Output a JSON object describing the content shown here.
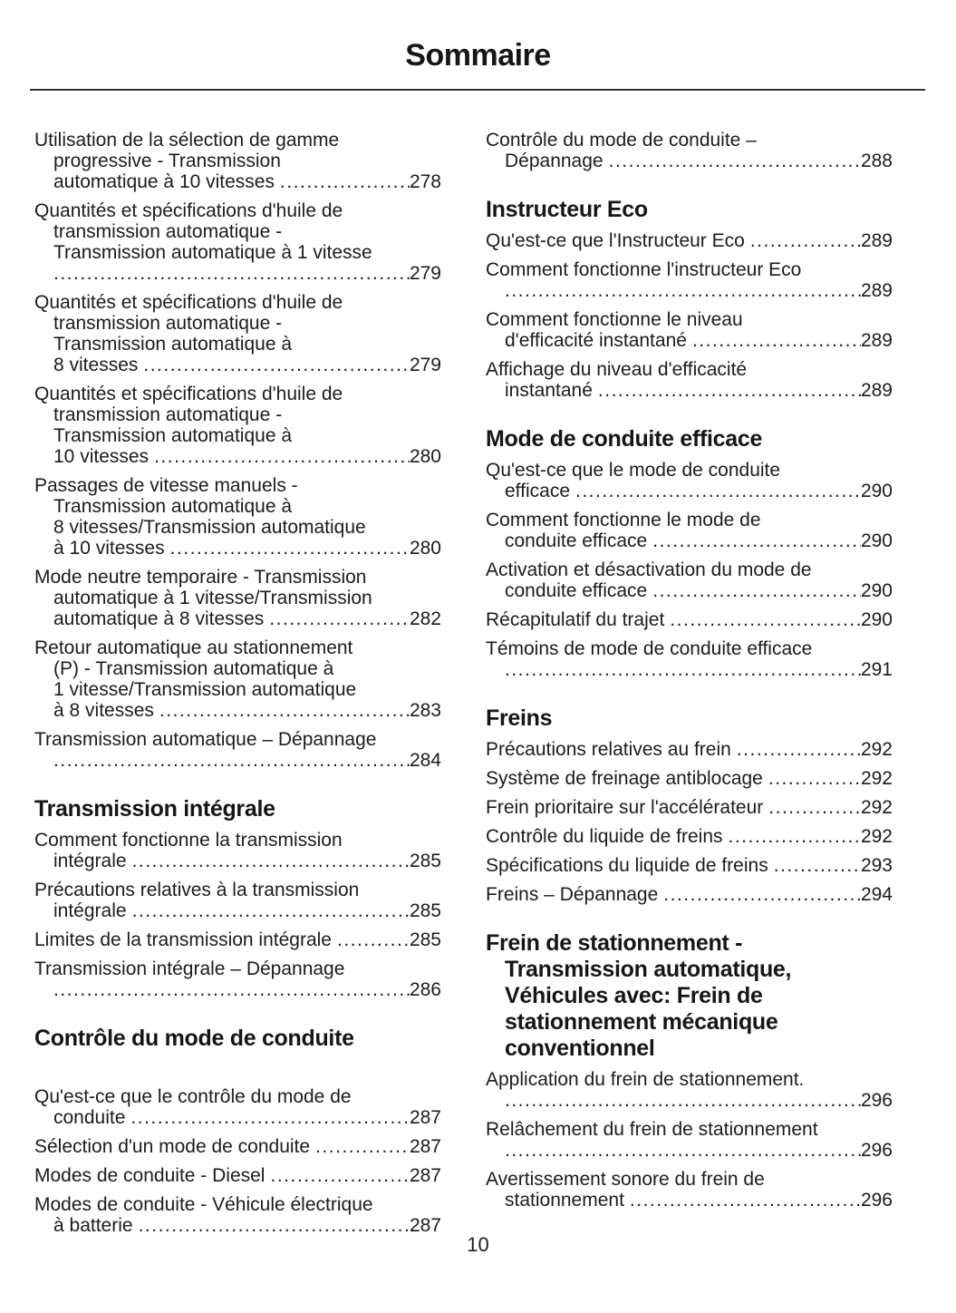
{
  "page": {
    "title": "Sommaire",
    "footer_page_number": "10"
  },
  "colors": {
    "background": "#ffffff",
    "text": "#1c1c1c",
    "divider": "#333333"
  },
  "toc": {
    "columns": [
      {
        "blocks": [
          {
            "type": "entry",
            "page": "278",
            "lines": [
              "Utilisation de la sélection de gamme",
              "progressive - Transmission",
              "automatique à 10 vitesses"
            ]
          },
          {
            "type": "entry",
            "page": "279",
            "lines": [
              "Quantités et spécifications d'huile de",
              "transmission automatique -",
              "Transmission automatique à 1 vitesse",
              ""
            ]
          },
          {
            "type": "entry",
            "page": "279",
            "lines": [
              "Quantités et spécifications d'huile de",
              "transmission automatique -",
              "Transmission automatique à",
              "8 vitesses"
            ]
          },
          {
            "type": "entry",
            "page": "280",
            "lines": [
              "Quantités et spécifications d'huile de",
              "transmission automatique -",
              "Transmission automatique à",
              "10 vitesses"
            ]
          },
          {
            "type": "entry",
            "page": "280",
            "lines": [
              "Passages de vitesse manuels -",
              "Transmission automatique à",
              "8 vitesses/Transmission automatique",
              "à 10 vitesses"
            ]
          },
          {
            "type": "entry",
            "page": "282",
            "lines": [
              "Mode neutre temporaire - Transmission",
              "automatique à 1 vitesse/Transmission",
              "automatique à 8 vitesses"
            ]
          },
          {
            "type": "entry",
            "page": "283",
            "lines": [
              "Retour automatique au stationnement",
              "(P) - Transmission automatique à",
              "1 vitesse/Transmission automatique",
              "à 8 vitesses"
            ]
          },
          {
            "type": "entry",
            "page": "284",
            "lines": [
              "Transmission automatique – Dépannage",
              ""
            ]
          },
          {
            "type": "heading",
            "lines": [
              "Transmission intégrale"
            ]
          },
          {
            "type": "entry",
            "page": "285",
            "lines": [
              "Comment fonctionne la transmission",
              "intégrale"
            ]
          },
          {
            "type": "entry",
            "page": "285",
            "lines": [
              "Précautions relatives à la transmission",
              "intégrale"
            ]
          },
          {
            "type": "entry",
            "page": "285",
            "lines": [
              "Limites de la transmission intégrale"
            ]
          },
          {
            "type": "entry",
            "page": "286",
            "lines": [
              "Transmission intégrale – Dépannage",
              ""
            ]
          },
          {
            "type": "heading",
            "lines": [
              "Contrôle du mode de conduite"
            ]
          },
          {
            "type": "spacer"
          },
          {
            "type": "entry",
            "page": "287",
            "lines": [
              "Qu'est-ce que le contrôle du mode de",
              "conduite"
            ]
          },
          {
            "type": "entry",
            "page": "287",
            "lines": [
              "Sélection d'un mode de conduite"
            ]
          },
          {
            "type": "entry",
            "page": "287",
            "lines": [
              "Modes de conduite - Diesel"
            ]
          },
          {
            "type": "entry",
            "page": "287",
            "lines": [
              "Modes de conduite - Véhicule électrique",
              "à batterie"
            ]
          }
        ]
      },
      {
        "blocks": [
          {
            "type": "entry",
            "page": "288",
            "lines": [
              "Contrôle du mode de conduite –",
              "Dépannage"
            ]
          },
          {
            "type": "heading",
            "lines": [
              "Instructeur Eco"
            ]
          },
          {
            "type": "entry",
            "page": "289",
            "lines": [
              "Qu'est-ce que l'Instructeur Eco"
            ]
          },
          {
            "type": "entry",
            "page": "289",
            "lines": [
              "Comment fonctionne l'instructeur Eco",
              ""
            ]
          },
          {
            "type": "entry",
            "page": "289",
            "lines": [
              "Comment fonctionne le niveau",
              "d'efficacité instantané"
            ]
          },
          {
            "type": "entry",
            "page": "289",
            "lines": [
              "Affichage du niveau d'efficacité",
              "instantané"
            ]
          },
          {
            "type": "heading",
            "lines": [
              "Mode de conduite efficace"
            ]
          },
          {
            "type": "entry",
            "page": "290",
            "lines": [
              "Qu'est-ce que le mode de conduite",
              "efficace"
            ]
          },
          {
            "type": "entry",
            "page": "290",
            "lines": [
              "Comment fonctionne le mode de",
              "conduite efficace"
            ]
          },
          {
            "type": "entry",
            "page": "290",
            "lines": [
              "Activation et désactivation du mode de",
              "conduite efficace"
            ]
          },
          {
            "type": "entry",
            "page": "290",
            "lines": [
              "Récapitulatif du trajet"
            ]
          },
          {
            "type": "entry",
            "page": "291",
            "lines": [
              "Témoins de mode de conduite efficace",
              ""
            ]
          },
          {
            "type": "heading",
            "lines": [
              "Freins"
            ]
          },
          {
            "type": "entry",
            "page": "292",
            "lines": [
              "Précautions relatives au frein"
            ]
          },
          {
            "type": "entry",
            "page": "292",
            "lines": [
              "Système de freinage antiblocage"
            ]
          },
          {
            "type": "entry",
            "page": "292",
            "lines": [
              "Frein prioritaire sur l'accélérateur"
            ]
          },
          {
            "type": "entry",
            "page": "292",
            "lines": [
              "Contrôle du liquide de freins"
            ]
          },
          {
            "type": "entry",
            "page": "293",
            "lines": [
              "Spécifications du liquide de freins"
            ]
          },
          {
            "type": "entry",
            "page": "294",
            "lines": [
              "Freins – Dépannage"
            ]
          },
          {
            "type": "heading",
            "lines": [
              "Frein de stationnement -",
              "Transmission automatique,",
              "Véhicules avec: Frein de",
              "stationnement mécanique",
              "conventionnel"
            ]
          },
          {
            "type": "entry",
            "page": "296",
            "lines": [
              "Application du frein de stationnement.",
              ""
            ]
          },
          {
            "type": "entry",
            "page": "296",
            "lines": [
              "Relâchement du frein de stationnement",
              ""
            ]
          },
          {
            "type": "entry",
            "page": "296",
            "lines": [
              "Avertissement sonore du frein de",
              "stationnement"
            ]
          }
        ]
      }
    ]
  }
}
